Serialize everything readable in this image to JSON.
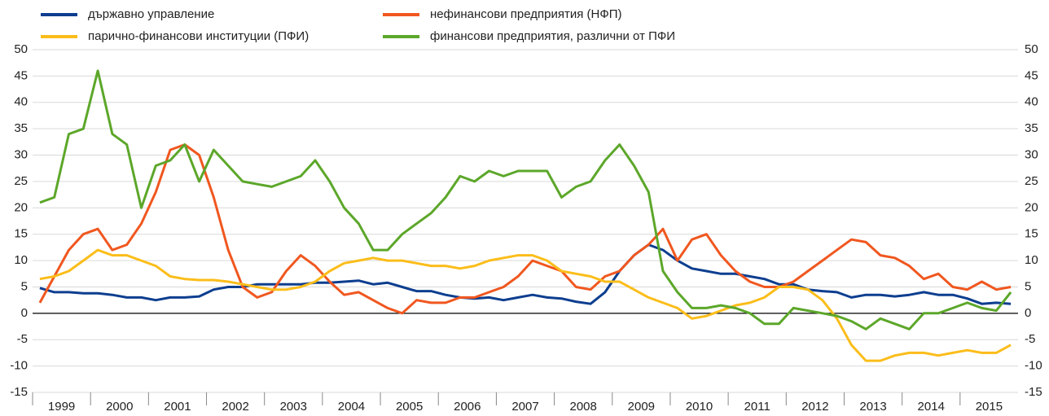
{
  "chart_data": {
    "type": "line",
    "categories": [
      "1999",
      null,
      null,
      null,
      "2000",
      null,
      null,
      null,
      "2001",
      null,
      null,
      null,
      "2002",
      null,
      null,
      null,
      "2003",
      null,
      null,
      null,
      "2004",
      null,
      null,
      null,
      "2005",
      null,
      null,
      null,
      "2006",
      null,
      null,
      null,
      "2007",
      null,
      null,
      null,
      "2008",
      null,
      null,
      null,
      "2009",
      null,
      null,
      null,
      "2010",
      null,
      null,
      null,
      "2011",
      null,
      null,
      null,
      "2012",
      null,
      null,
      null,
      "2013",
      null,
      null,
      null,
      "2014",
      null,
      null,
      null,
      "2015",
      null,
      null,
      null
    ],
    "series": [
      {
        "name": "държавно управление",
        "color": "#0d3e8f",
        "values": [
          4.8,
          4,
          4,
          3.8,
          3.8,
          3.5,
          3,
          3,
          2.5,
          3,
          3,
          3.2,
          4.5,
          5,
          5,
          5.5,
          5.5,
          5.5,
          5.5,
          5.8,
          5.8,
          6,
          6.2,
          5.5,
          5.8,
          5,
          4.2,
          4.2,
          3.5,
          3,
          2.8,
          3,
          2.5,
          3,
          3.5,
          3,
          2.8,
          2.2,
          1.8,
          4,
          8,
          11,
          13,
          12,
          10,
          8.5,
          8,
          7.5,
          7.5,
          7,
          6.5,
          5.5,
          5.5,
          4.5,
          4.2,
          4,
          3,
          3.5,
          3.5,
          3.2,
          3.5,
          4,
          3.5,
          3.5,
          2.8,
          1.8,
          2,
          1.8
        ]
      },
      {
        "name": "нефинансови предприятия (НФП)",
        "color": "#f0571f",
        "values": [
          2,
          7,
          12,
          15,
          16,
          12,
          13,
          17,
          23,
          31,
          32,
          30,
          22,
          12,
          5,
          3,
          4,
          8,
          11,
          9,
          6,
          3.5,
          4,
          2.5,
          1,
          0,
          2.5,
          2,
          2,
          3,
          3,
          4,
          5,
          7,
          10,
          9,
          8,
          5,
          4.5,
          7,
          8,
          11,
          13,
          16,
          10,
          14,
          15,
          11,
          8,
          6,
          5,
          5,
          6,
          8,
          10,
          12,
          14,
          13.5,
          11,
          10.5,
          9,
          6.5,
          7.5,
          5,
          4.5,
          6,
          4.5,
          5
        ]
      },
      {
        "name": "парично-финансови институции (ПФИ)",
        "color": "#fbbd1a",
        "values": [
          6.5,
          7,
          8,
          10,
          12,
          11,
          11,
          10,
          9,
          7,
          6.5,
          6.3,
          6.3,
          6,
          5.5,
          5,
          4.5,
          4.5,
          5,
          6,
          8,
          9.5,
          10,
          10.5,
          10,
          10,
          9.5,
          9,
          9,
          8.5,
          9,
          10,
          10.5,
          11,
          11,
          10,
          8,
          7.5,
          7,
          6,
          6,
          4.5,
          3,
          2,
          1,
          -1,
          -0.5,
          0.5,
          1.5,
          2,
          3,
          5,
          5,
          4.5,
          2.5,
          -1,
          -6,
          -9,
          -9,
          -8,
          -7.5,
          -7.5,
          -8,
          -7.5,
          -7,
          -7.5,
          -7.5,
          -6
        ]
      },
      {
        "name": "финансови предприятия, различни от ПФИ",
        "color": "#5ca72a",
        "values": [
          21,
          22,
          34,
          35,
          46,
          34,
          32,
          20,
          28,
          29,
          32,
          25,
          31,
          28,
          25,
          24.5,
          24,
          25,
          26,
          29,
          25,
          20,
          17,
          12,
          12,
          15,
          17,
          19,
          22,
          26,
          25,
          27,
          26,
          27,
          27,
          27,
          22,
          24,
          25,
          29,
          32,
          28,
          23,
          8,
          4,
          1,
          1,
          1.5,
          1,
          0,
          -2,
          -2,
          1,
          0.5,
          0,
          -0.5,
          -1.5,
          -3,
          -1,
          -2,
          -3,
          0,
          0,
          1,
          2,
          1,
          0.5,
          4
        ]
      }
    ],
    "ylim": [
      -15,
      50
    ],
    "yticks": [
      -15,
      -10,
      -5,
      0,
      5,
      10,
      15,
      20,
      25,
      30,
      35,
      40,
      45,
      50
    ],
    "grid": true
  }
}
